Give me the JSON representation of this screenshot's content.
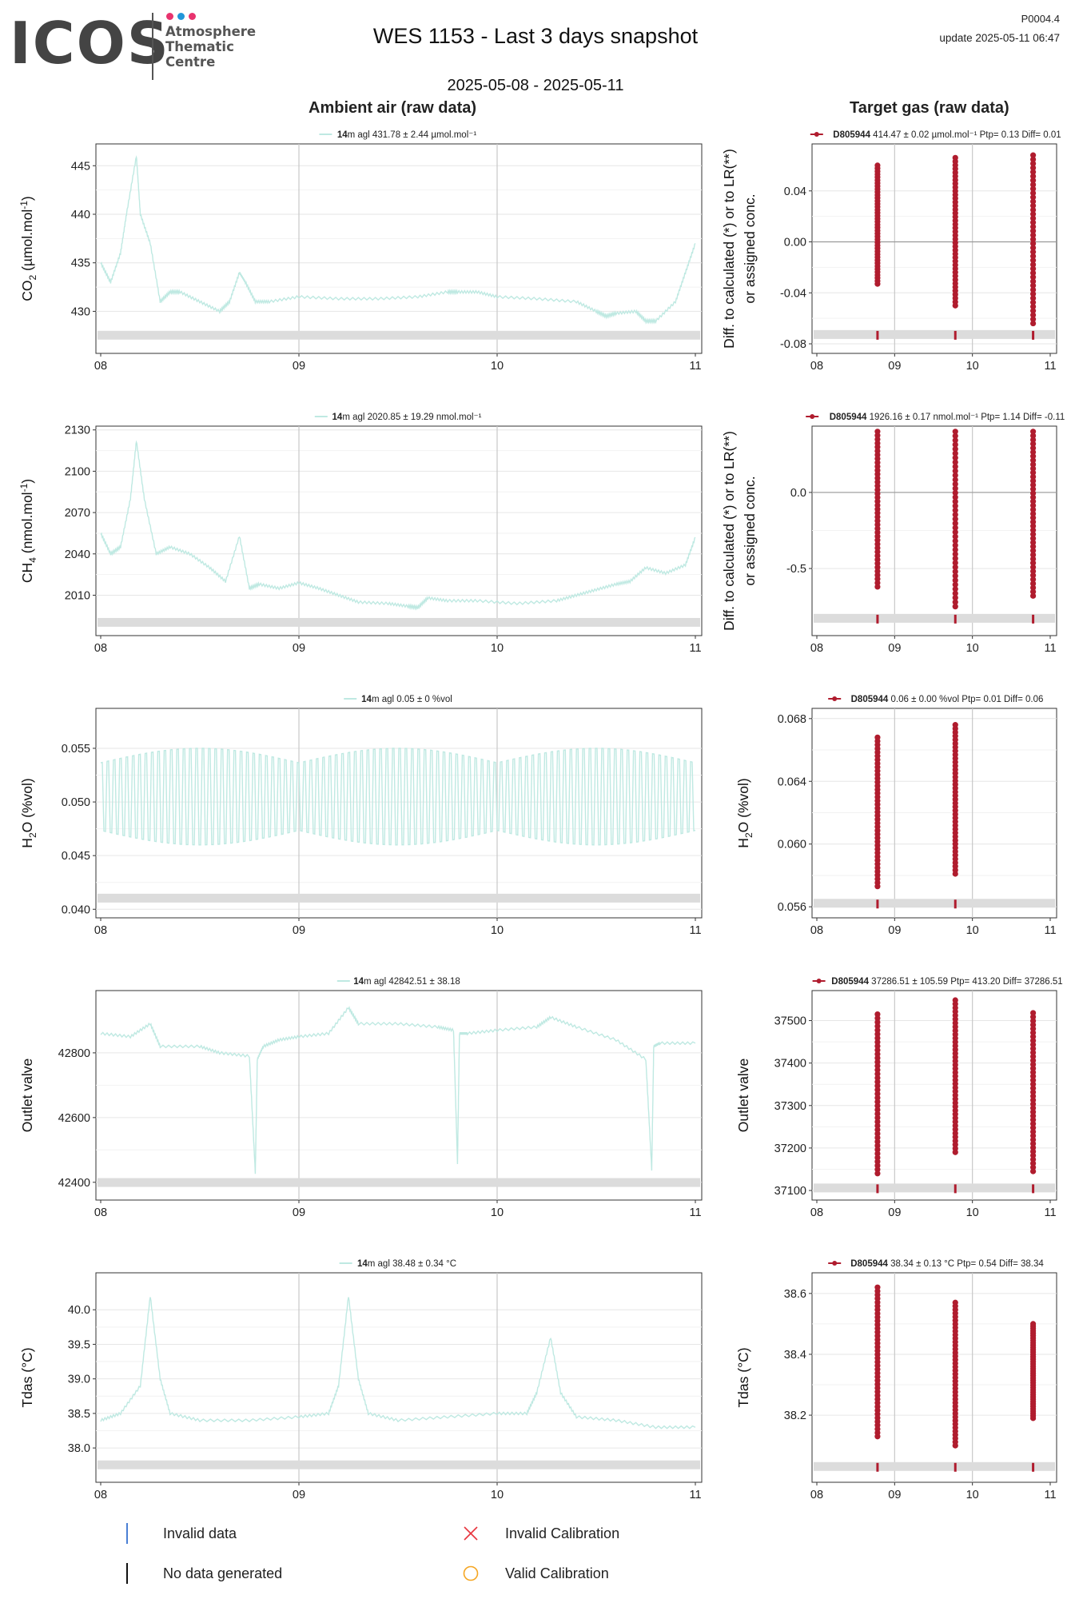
{
  "header": {
    "logo_text": "ICOS",
    "logo_subtitle_1": "Atmosphere",
    "logo_subtitle_2": "Thematic",
    "logo_subtitle_3": "Centre",
    "logo_dot_colors": [
      "#e8336e",
      "#2196d9",
      "#e8336e"
    ],
    "title": "WES 1153 - Last 3 days snapshot",
    "date_range": "2025-05-08 - 2025-05-11",
    "version": "P0004.4",
    "update": "update  2025-05-11 06:47"
  },
  "sections": {
    "left": "Ambient air (raw data)",
    "right": "Target gas (raw data)"
  },
  "colors": {
    "ambient": "#bfe9e2",
    "target": "#b01c2e",
    "invalid_data": "#4a7fd4",
    "no_data": "#111111",
    "invalid_calibration": "#e8333c",
    "valid_calibration": "#f5a623",
    "band": "#dcdcdc"
  },
  "legend": {
    "invalid_data": "Invalid data",
    "no_data": "No data generated",
    "invalid_calibration": "Invalid Calibration",
    "valid_calibration": "Valid Calibration"
  },
  "chart_data": [
    {
      "type": "line",
      "panel": "left",
      "row": 0,
      "ylabel": "CO2 (µmol.mol-1)",
      "legend_bold": "14",
      "legend_text": "m agl 431.78 ± 2.44 µmol.mol⁻¹",
      "xlim": [
        8,
        11
      ],
      "ylim": [
        426,
        447
      ],
      "yticks": [
        430,
        435,
        440,
        445
      ],
      "ytick_labels": [
        "430",
        "435",
        "440",
        "445"
      ],
      "xticks": [
        8,
        9,
        10,
        11
      ],
      "xtick_labels": [
        "08",
        "09",
        "10",
        "11"
      ],
      "x": [
        8.0,
        8.05,
        8.1,
        8.13,
        8.18,
        8.2,
        8.25,
        8.3,
        8.35,
        8.4,
        8.5,
        8.6,
        8.65,
        8.7,
        8.73,
        8.78,
        8.85,
        9.0,
        9.2,
        9.4,
        9.6,
        9.75,
        9.8,
        9.9,
        10.0,
        10.2,
        10.4,
        10.5,
        10.55,
        10.6,
        10.7,
        10.75,
        10.8,
        10.9,
        10.95,
        11.0
      ],
      "y": [
        435,
        433,
        436,
        440,
        446,
        440,
        437,
        431,
        432,
        432,
        431,
        430,
        431,
        434,
        433,
        431,
        431,
        431.5,
        431.3,
        431.3,
        431.5,
        432,
        432,
        432,
        431.5,
        431.3,
        431,
        430,
        429.5,
        429.8,
        430,
        429,
        429,
        431,
        434,
        437
      ],
      "band_y": 427.5
    },
    {
      "type": "scatter",
      "panel": "right",
      "row": 0,
      "ylabel": "Diff. to calculated (*) or to LR(**) or assigned conc.",
      "legend_bold": "D805944",
      "legend_text": " 414.47 ± 0.02 µmol.mol⁻¹  Ptp= 0.13 Diff= 0.01",
      "xlim": [
        8,
        11
      ],
      "ylim": [
        -0.085,
        0.075
      ],
      "yticks": [
        -0.08,
        -0.04,
        0.0,
        0.04
      ],
      "ytick_labels": [
        "-0.08",
        "-0.04",
        "0.00",
        "0.04"
      ],
      "xticks": [
        8,
        9,
        10,
        11
      ],
      "xtick_labels": [
        "08",
        "09",
        "10",
        "11"
      ],
      "hline": 0.0,
      "events": [
        {
          "x": 8.78,
          "min": -0.033,
          "max": 0.06
        },
        {
          "x": 9.78,
          "min": -0.05,
          "max": 0.066
        },
        {
          "x": 10.78,
          "min": -0.064,
          "max": 0.068
        }
      ],
      "band_y": -0.073
    },
    {
      "type": "line",
      "panel": "left",
      "row": 1,
      "ylabel": "CH4 (nmol.mol-1)",
      "legend_bold": "14",
      "legend_text": "m agl 2020.85 ± 19.29 nmol.mol⁻¹",
      "xlim": [
        8,
        11
      ],
      "ylim": [
        1983,
        2131
      ],
      "yticks": [
        2010,
        2040,
        2070,
        2100,
        2130
      ],
      "ytick_labels": [
        "2010",
        "2040",
        "2070",
        "2100",
        "2130"
      ],
      "xticks": [
        8,
        9,
        10,
        11
      ],
      "xtick_labels": [
        "08",
        "09",
        "10",
        "11"
      ],
      "x": [
        8.0,
        8.05,
        8.1,
        8.15,
        8.18,
        8.22,
        8.28,
        8.35,
        8.45,
        8.55,
        8.63,
        8.7,
        8.75,
        8.8,
        8.9,
        9.0,
        9.1,
        9.2,
        9.3,
        9.45,
        9.55,
        9.6,
        9.65,
        9.75,
        9.9,
        10.1,
        10.3,
        10.4,
        10.5,
        10.6,
        10.67,
        10.75,
        10.85,
        10.95,
        11.0
      ],
      "y": [
        2055,
        2040,
        2045,
        2080,
        2122,
        2080,
        2040,
        2045,
        2040,
        2030,
        2020,
        2053,
        2015,
        2018,
        2015,
        2019,
        2015,
        2010,
        2005,
        2004,
        2002,
        2001,
        2008,
        2006,
        2006,
        2004,
        2006,
        2010,
        2014,
        2018,
        2020,
        2030,
        2026,
        2032,
        2052
      ],
      "band_y": 1990
    },
    {
      "type": "scatter",
      "panel": "right",
      "row": 1,
      "ylabel": "Diff. to calculated (*) or to LR(**) or assigned conc.",
      "legend_bold": "D805944",
      "legend_text": " 1926.16 ± 0.17 nmol.mol⁻¹  Ptp= 1.14 Diff= -0.11",
      "xlim": [
        8,
        11
      ],
      "ylim": [
        -0.92,
        0.42
      ],
      "yticks": [
        -0.5,
        0.0
      ],
      "ytick_labels": [
        "-0.5",
        "0.0"
      ],
      "xticks": [
        8,
        9,
        10,
        11
      ],
      "xtick_labels": [
        "08",
        "09",
        "10",
        "11"
      ],
      "hline": 0.0,
      "events": [
        {
          "x": 8.78,
          "min": -0.62,
          "max": 0.4
        },
        {
          "x": 9.78,
          "min": -0.75,
          "max": 0.4
        },
        {
          "x": 10.78,
          "min": -0.68,
          "max": 0.4
        }
      ],
      "band_y": -0.83
    },
    {
      "type": "line",
      "panel": "left",
      "row": 2,
      "ylabel": "H2O (%vol)",
      "legend_bold": "14",
      "legend_text": "m agl 0.05 ± 0 %vol",
      "xlim": [
        8,
        11
      ],
      "ylim": [
        0.0395,
        0.0585
      ],
      "yticks": [
        0.04,
        0.045,
        0.05,
        0.055
      ],
      "ytick_labels": [
        "0.040",
        "0.045",
        "0.050",
        "0.055"
      ],
      "xticks": [
        8,
        9,
        10,
        11
      ],
      "xtick_labels": [
        "08",
        "09",
        "10",
        "11"
      ],
      "oscillation": {
        "center": 0.0505,
        "amplitude": 0.0045,
        "period_days": 0.032
      },
      "band_y": 0.041
    },
    {
      "type": "scatter",
      "panel": "right",
      "row": 2,
      "ylabel": "H2O (%vol)",
      "legend_bold": "D805944",
      "legend_text": " 0.06 ± 0.00 %vol  Ptp= 0.01 Diff= 0.06",
      "xlim": [
        8,
        11
      ],
      "ylim": [
        0.0555,
        0.0685
      ],
      "yticks": [
        0.056,
        0.06,
        0.064,
        0.068
      ],
      "ytick_labels": [
        "0.056",
        "0.060",
        "0.064",
        "0.068"
      ],
      "xticks": [
        8,
        9,
        10,
        11
      ],
      "xtick_labels": [
        "08",
        "09",
        "10",
        "11"
      ],
      "events": [
        {
          "x": 8.78,
          "min": 0.0573,
          "max": 0.0668
        },
        {
          "x": 9.78,
          "min": 0.0581,
          "max": 0.0676
        }
      ],
      "band_y": 0.0562
    },
    {
      "type": "line",
      "panel": "left",
      "row": 3,
      "ylabel": "Outlet valve",
      "legend_bold": "14",
      "legend_text": "m agl 42842.51 ± 38.18",
      "xlim": [
        8,
        11
      ],
      "ylim": [
        42355,
        42985
      ],
      "yticks": [
        42400,
        42600,
        42800
      ],
      "ytick_labels": [
        "42400",
        "42600",
        "42800"
      ],
      "xticks": [
        8,
        9,
        10,
        11
      ],
      "xtick_labels": [
        "08",
        "09",
        "10",
        "11"
      ],
      "x": [
        8.0,
        8.15,
        8.25,
        8.3,
        8.5,
        8.6,
        8.75,
        8.78,
        8.79,
        8.82,
        8.9,
        9.0,
        9.15,
        9.25,
        9.3,
        9.5,
        9.7,
        9.78,
        9.8,
        9.81,
        9.85,
        10.0,
        10.2,
        10.27,
        10.4,
        10.6,
        10.75,
        10.78,
        10.79,
        10.82,
        11.0
      ],
      "y": [
        42860,
        42850,
        42890,
        42820,
        42820,
        42800,
        42790,
        42430,
        42780,
        42820,
        42840,
        42850,
        42860,
        42940,
        42890,
        42890,
        42880,
        42870,
        42460,
        42860,
        42860,
        42870,
        42880,
        42910,
        42880,
        42840,
        42780,
        42440,
        42820,
        42830,
        42830
      ],
      "band_y": 42398
    },
    {
      "type": "scatter",
      "panel": "right",
      "row": 3,
      "ylabel": "Outlet valve",
      "legend_bold": "D805944",
      "legend_text": " 37286.51 ± 105.59  Ptp= 413.20 Diff= 37286.51",
      "xlim": [
        8,
        11
      ],
      "ylim": [
        37085,
        37565
      ],
      "yticks": [
        37100,
        37200,
        37300,
        37400,
        37500
      ],
      "ytick_labels": [
        "37100",
        "37200",
        "37300",
        "37400",
        "37500"
      ],
      "xticks": [
        8,
        9,
        10,
        11
      ],
      "xtick_labels": [
        "08",
        "09",
        "10",
        "11"
      ],
      "events": [
        {
          "x": 8.78,
          "min": 37140,
          "max": 37515
        },
        {
          "x": 9.78,
          "min": 37190,
          "max": 37548
        },
        {
          "x": 10.78,
          "min": 37145,
          "max": 37518
        }
      ],
      "band_y": 37105
    },
    {
      "type": "line",
      "panel": "left",
      "row": 4,
      "ylabel": "Tdas (°C)",
      "legend_bold": "14",
      "legend_text": "m agl 38.48 ± 0.34 °C",
      "xlim": [
        8,
        11
      ],
      "ylim": [
        37.55,
        40.5
      ],
      "yticks": [
        38.0,
        38.5,
        39.0,
        39.5,
        40.0
      ],
      "ytick_labels": [
        "38.0",
        "38.5",
        "39.0",
        "39.5",
        "40.0"
      ],
      "xticks": [
        8,
        9,
        10,
        11
      ],
      "xtick_labels": [
        "08",
        "09",
        "10",
        "11"
      ],
      "x": [
        8.0,
        8.1,
        8.2,
        8.25,
        8.3,
        8.35,
        8.5,
        8.75,
        9.0,
        9.15,
        9.2,
        9.25,
        9.3,
        9.35,
        9.5,
        9.75,
        10.0,
        10.15,
        10.2,
        10.27,
        10.32,
        10.4,
        10.6,
        10.8,
        11.0
      ],
      "y": [
        38.4,
        38.5,
        38.9,
        40.2,
        39.0,
        38.5,
        38.4,
        38.4,
        38.45,
        38.5,
        38.9,
        40.2,
        39.0,
        38.5,
        38.4,
        38.45,
        38.5,
        38.5,
        38.8,
        39.6,
        38.8,
        38.45,
        38.4,
        38.3,
        38.3
      ],
      "band_y": 37.75
    },
    {
      "type": "scatter",
      "panel": "right",
      "row": 4,
      "ylabel": "Tdas (°C)",
      "legend_bold": "D805944",
      "legend_text": " 38.34 ± 0.13 °C  Ptp= 0.54 Diff= 38.34",
      "xlim": [
        8,
        11
      ],
      "ylim": [
        37.99,
        38.66
      ],
      "yticks": [
        38.2,
        38.4,
        38.6
      ],
      "ytick_labels": [
        "38.2",
        "38.4",
        "38.6"
      ],
      "xticks": [
        8,
        9,
        10,
        11
      ],
      "xtick_labels": [
        "08",
        "09",
        "10",
        "11"
      ],
      "events": [
        {
          "x": 8.78,
          "min": 38.13,
          "max": 38.62
        },
        {
          "x": 9.78,
          "min": 38.1,
          "max": 38.57
        },
        {
          "x": 10.78,
          "min": 38.19,
          "max": 38.5
        }
      ],
      "band_y": 38.03
    }
  ]
}
